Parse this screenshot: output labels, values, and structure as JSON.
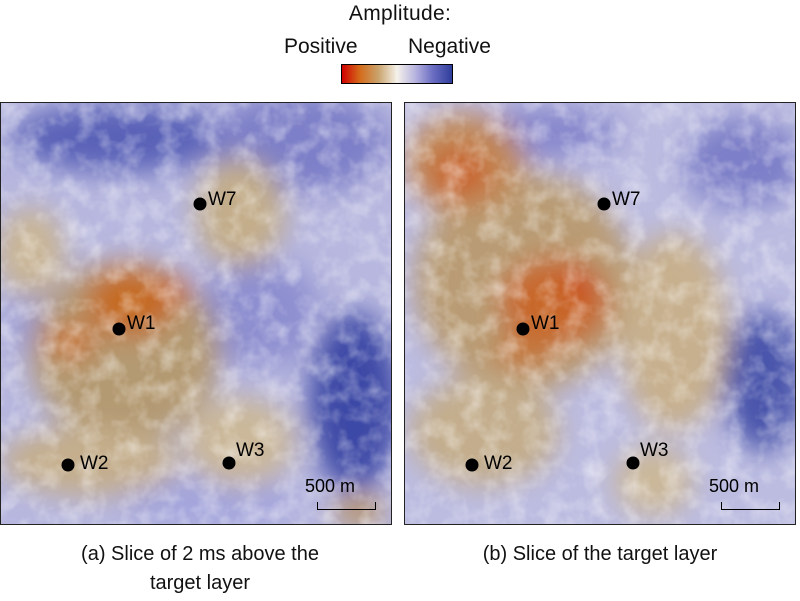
{
  "legend": {
    "title": "Amplitude:",
    "positive_label": "Positive",
    "negative_label": "Negative",
    "colors": [
      "#d00000",
      "#d46a1a",
      "#c9a36c",
      "#f5f1ea",
      "#b9b6e0",
      "#6d6fc3",
      "#2e3d9b"
    ]
  },
  "panels": [
    {
      "caption_line1": "(a) Slice of 2 ms above the",
      "caption_line2": "target layer",
      "scale_label": "500 m",
      "wells": [
        {
          "name": "W7"
        },
        {
          "name": "W1"
        },
        {
          "name": "W2"
        },
        {
          "name": "W3"
        }
      ]
    },
    {
      "caption_line1": "(b) Slice of the target layer",
      "caption_line2": "",
      "scale_label": "500 m",
      "wells": [
        {
          "name": "W7"
        },
        {
          "name": "W1"
        },
        {
          "name": "W2"
        },
        {
          "name": "W3"
        }
      ]
    }
  ]
}
